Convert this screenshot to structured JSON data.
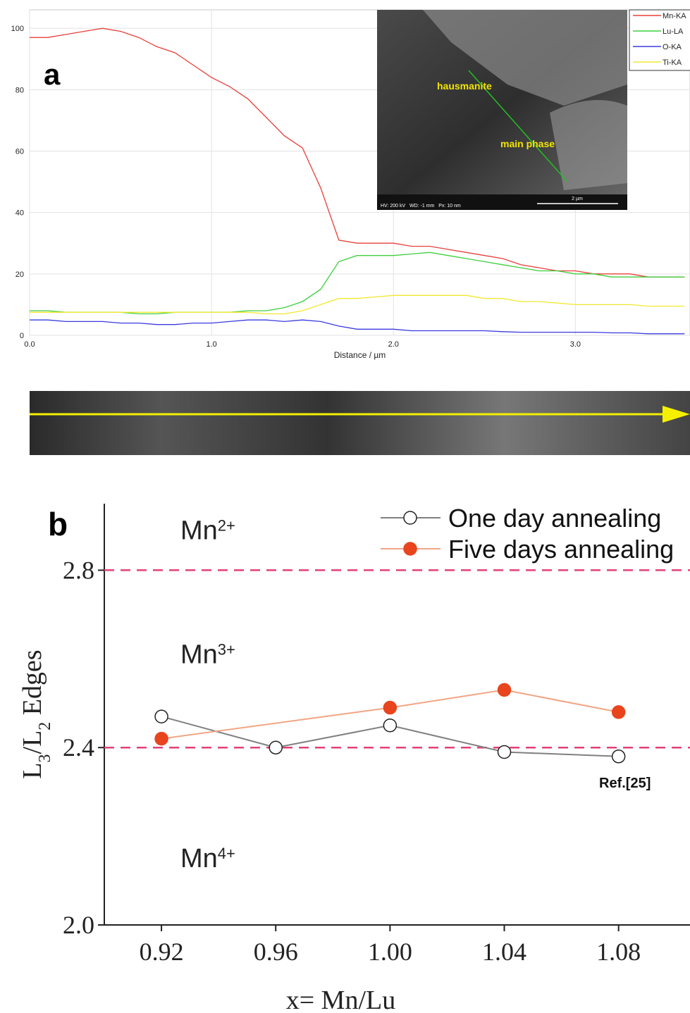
{
  "chart_data": [
    {
      "type": "line",
      "panel_label": "a",
      "x_label": "Distance / µm",
      "xlim": [
        0,
        3.63
      ],
      "ylim": [
        0,
        106
      ],
      "xticks": [
        {
          "value": 0,
          "label": "0.0"
        },
        {
          "value": 1,
          "label": "1.0"
        },
        {
          "value": 2,
          "label": "2.0"
        },
        {
          "value": 3,
          "label": "3.0"
        }
      ],
      "yticks": [
        0,
        20,
        40,
        60,
        80,
        100
      ],
      "grid": true,
      "legend": "top-right",
      "x": [
        0,
        0.1,
        0.2,
        0.3,
        0.4,
        0.5,
        0.6,
        0.7,
        0.8,
        0.9,
        1.0,
        1.1,
        1.2,
        1.3,
        1.4,
        1.5,
        1.6,
        1.7,
        1.8,
        1.9,
        2.0,
        2.1,
        2.2,
        2.3,
        2.4,
        2.5,
        2.6,
        2.7,
        2.8,
        2.9,
        3.0,
        3.1,
        3.2,
        3.3,
        3.4,
        3.5,
        3.6
      ],
      "series": [
        {
          "name": "Mn-KA",
          "color": "#e8403a",
          "values": [
            97,
            97,
            98,
            99,
            100,
            99,
            97,
            94,
            92,
            88,
            84,
            81,
            77,
            71,
            65,
            61,
            48,
            31,
            30,
            30,
            30,
            29,
            29,
            28,
            27,
            26,
            25,
            23,
            22,
            21,
            21,
            20,
            20,
            20,
            19,
            19,
            19
          ]
        },
        {
          "name": "Lu-LA",
          "color": "#3ecf3e",
          "values": [
            8,
            8,
            7.5,
            7.5,
            7.5,
            7.5,
            7,
            7,
            7.5,
            7.5,
            7.5,
            7.5,
            8,
            8,
            9,
            11,
            15,
            24,
            26,
            26,
            26,
            26.5,
            27,
            26,
            25,
            24,
            23,
            22,
            21,
            21,
            20,
            20,
            19,
            19,
            19,
            19,
            19
          ]
        },
        {
          "name": "O-KA",
          "color": "#3a3ae0",
          "values": [
            5,
            5,
            4.5,
            4.5,
            4.5,
            4,
            4,
            3.5,
            3.5,
            4,
            4,
            4.5,
            5,
            5,
            4.5,
            5,
            4.5,
            3,
            2,
            2,
            2,
            1.5,
            1.5,
            1.5,
            1.5,
            1.5,
            1.2,
            1,
            1,
            1,
            1,
            1,
            0.8,
            0.8,
            0.5,
            0.5,
            0.5
          ]
        },
        {
          "name": "Ti-KA",
          "color": "#f2e830",
          "values": [
            7.5,
            7.5,
            7.5,
            7.5,
            7.5,
            7.5,
            7.5,
            7.5,
            7.5,
            7.5,
            7.5,
            7.5,
            7.5,
            7,
            7,
            8,
            10,
            12,
            12,
            12.5,
            13,
            13,
            13,
            13,
            13,
            12,
            12,
            11,
            11,
            10.5,
            10,
            10,
            10,
            10,
            9.5,
            9.5,
            9.5
          ]
        }
      ],
      "inset": {
        "labels": [
          "hausmanite",
          "main phase"
        ],
        "info": "HV: 200 kV   WD: -1 mm   Px: 10 nm",
        "scale_bar": "2 µm"
      }
    },
    {
      "type": "line",
      "panel_label": "b",
      "x_label": "x= Mn/Lu",
      "y_label": [
        {
          "text": "L"
        },
        {
          "text": "3",
          "sub": true
        },
        {
          "text": "/L"
        },
        {
          "text": "2",
          "sub": true
        },
        {
          "text": " Edges"
        }
      ],
      "xlim": [
        0.9,
        1.105
      ],
      "ylim": [
        2.0,
        2.95
      ],
      "xticks": [
        0.92,
        0.96,
        {
          "value": 1,
          "label": "1.00"
        },
        1.04,
        1.08
      ],
      "yticks": [
        {
          "value": 2,
          "label": "2.0"
        },
        2.4,
        2.8
      ],
      "grid": false,
      "legend": "top-right",
      "reference_lines": [
        2.4,
        2.8
      ],
      "region_labels": [
        {
          "base": "Mn",
          "sup": "2+",
          "y": 2.87
        },
        {
          "base": "Mn",
          "sup": "3+",
          "y": 2.59
        },
        {
          "base": "Mn",
          "sup": "4+",
          "y": 2.13
        }
      ],
      "annotation": "Ref.[25]",
      "series": [
        {
          "name": "One day annealing",
          "color": "#222222",
          "line_color": "#808080",
          "marker": "open",
          "x": [
            0.92,
            0.96,
            1.0,
            1.04,
            1.08
          ],
          "values": [
            2.47,
            2.4,
            2.45,
            2.39,
            2.38
          ]
        },
        {
          "name": "Five days annealing",
          "color": "#e8451e",
          "line_color": "#f2a584",
          "marker": "filled",
          "x": [
            0.92,
            1.0,
            1.04,
            1.08
          ],
          "values": [
            2.42,
            2.49,
            2.53,
            2.48
          ]
        }
      ]
    }
  ]
}
